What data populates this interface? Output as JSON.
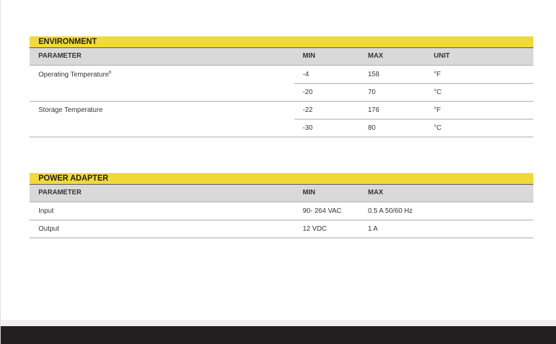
{
  "environment": {
    "title": "ENVIRONMENT",
    "headers": {
      "parameter": "PARAMETER",
      "min": "MIN",
      "max": "MAX",
      "unit": "UNIT"
    },
    "rows": [
      {
        "parameter": "Operating Temperature",
        "footnote": "6",
        "min": "-4",
        "max": "158",
        "unit": "°F"
      },
      {
        "parameter": "",
        "min": "-20",
        "max": "70",
        "unit": "°C"
      },
      {
        "parameter": "Storage Temperature",
        "min": "-22",
        "max": "176",
        "unit": "°F"
      },
      {
        "parameter": "",
        "min": "-30",
        "max": "80",
        "unit": "°C"
      }
    ]
  },
  "power_adapter": {
    "title": "POWER ADAPTER",
    "headers": {
      "parameter": "PARAMETER",
      "min": "MIN",
      "max": "MAX"
    },
    "rows": [
      {
        "parameter": "Input",
        "min": "90- 264 VAC",
        "max": "0.5 A 50/60 Hz"
      },
      {
        "parameter": "Output",
        "min": "12 VDC",
        "max": "1 A"
      }
    ]
  }
}
